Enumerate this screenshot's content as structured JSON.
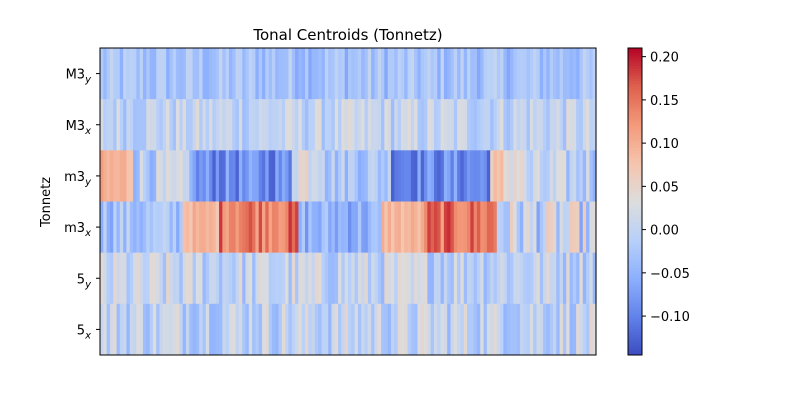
{
  "chart_data": {
    "type": "heatmap",
    "title": "Tonal Centroids (Tonnetz)",
    "xlabel": "",
    "ylabel": "Tonnetz",
    "rows": [
      {
        "base": "M3",
        "sub": "y"
      },
      {
        "base": "M3",
        "sub": "x"
      },
      {
        "base": "m3",
        "sub": "y"
      },
      {
        "base": "m3",
        "sub": "x"
      },
      {
        "base": "5",
        "sub": "y"
      },
      {
        "base": "5",
        "sub": "x"
      }
    ],
    "n_frames": 150,
    "colormap": "coolwarm",
    "vmin": -0.145,
    "vmax": 0.21,
    "colorbar_ticks": [
      -0.1,
      -0.05,
      0.0,
      0.05,
      0.1,
      0.15,
      0.2
    ],
    "colorbar_tick_labels": [
      "−0.10",
      "−0.05",
      "0.00",
      "0.05",
      "0.10",
      "0.15",
      "0.20"
    ],
    "colorbar_position": "right",
    "segments": [
      {
        "row": "M3_y",
        "frames": [
          0,
          150
        ],
        "mean": -0.03,
        "amp": 0.035
      },
      {
        "row": "M3_x",
        "frames": [
          0,
          150
        ],
        "mean": 0.0,
        "amp": 0.04
      },
      {
        "row": "m3_y",
        "frames": [
          0,
          10
        ],
        "mean": 0.09,
        "amp": 0.03
      },
      {
        "row": "m3_y",
        "frames": [
          10,
          28
        ],
        "mean": -0.01,
        "amp": 0.05
      },
      {
        "row": "m3_y",
        "frames": [
          28,
          58
        ],
        "mean": -0.09,
        "amp": 0.04
      },
      {
        "row": "m3_y",
        "frames": [
          58,
          68
        ],
        "mean": 0.04,
        "amp": 0.05
      },
      {
        "row": "m3_y",
        "frames": [
          68,
          88
        ],
        "mean": -0.02,
        "amp": 0.04
      },
      {
        "row": "m3_y",
        "frames": [
          88,
          118
        ],
        "mean": -0.09,
        "amp": 0.04
      },
      {
        "row": "m3_y",
        "frames": [
          118,
          128
        ],
        "mean": 0.05,
        "amp": 0.05
      },
      {
        "row": "m3_y",
        "frames": [
          128,
          150
        ],
        "mean": -0.01,
        "amp": 0.05
      },
      {
        "row": "m3_x",
        "frames": [
          0,
          25
        ],
        "mean": -0.03,
        "amp": 0.04
      },
      {
        "row": "m3_x",
        "frames": [
          25,
          36
        ],
        "mean": 0.09,
        "amp": 0.02
      },
      {
        "row": "m3_x",
        "frames": [
          36,
          60
        ],
        "mean": 0.15,
        "amp": 0.04
      },
      {
        "row": "m3_x",
        "frames": [
          60,
          85
        ],
        "mean": -0.05,
        "amp": 0.04
      },
      {
        "row": "m3_x",
        "frames": [
          85,
          98
        ],
        "mean": 0.09,
        "amp": 0.02
      },
      {
        "row": "m3_x",
        "frames": [
          98,
          120
        ],
        "mean": 0.15,
        "amp": 0.04
      },
      {
        "row": "m3_x",
        "frames": [
          120,
          150
        ],
        "mean": 0.0,
        "amp": 0.07
      },
      {
        "row": "5_y",
        "frames": [
          0,
          150
        ],
        "mean": 0.0,
        "amp": 0.05
      },
      {
        "row": "5_x",
        "frames": [
          0,
          150
        ],
        "mean": 0.0,
        "amp": 0.05
      }
    ]
  }
}
